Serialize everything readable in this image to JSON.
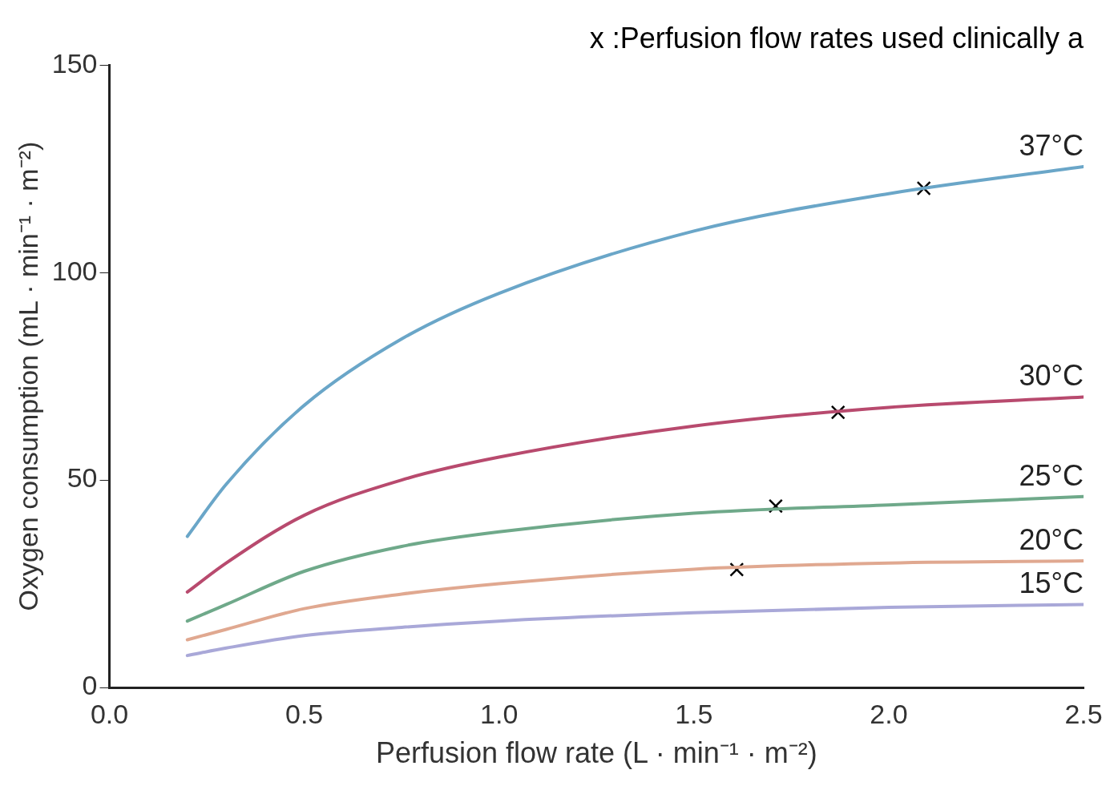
{
  "chart_data": {
    "type": "line",
    "title": "x :Perfusion flow rates used clinically a",
    "xlabel": "Perfusion flow rate (L · min⁻¹ · m⁻²)",
    "ylabel": "Oxygen consumption (mL · min⁻¹ · m⁻²)",
    "x": [
      0.2,
      0.3,
      0.5,
      0.75,
      1.0,
      1.5,
      2.0,
      2.5
    ],
    "series": [
      {
        "name": "37°C",
        "color": "#6aa6c8",
        "values": [
          36.4,
          49,
          68,
          84,
          95,
          110,
          119,
          125.5
        ]
      },
      {
        "name": "30°C",
        "color": "#b84a6e",
        "values": [
          23,
          30,
          41.5,
          50,
          55.5,
          63,
          67.5,
          70
        ]
      },
      {
        "name": "25°C",
        "color": "#6fa98a",
        "values": [
          16,
          20,
          28,
          34,
          37.5,
          42,
          44,
          46
        ]
      },
      {
        "name": "20°C",
        "color": "#e0a890",
        "values": [
          11.5,
          14,
          19,
          22.5,
          25,
          28.5,
          30,
          30.5
        ]
      },
      {
        "name": "15°C",
        "color": "#a9a8d8",
        "values": [
          7.7,
          9.5,
          12.5,
          14.5,
          16,
          18,
          19.3,
          20
        ]
      },
      {
        "type": "scatter",
        "color": "#000000",
        "marker": "cross",
        "x": [
          2.09,
          1.87,
          1.71,
          1.61
        ],
        "values": [
          120.3,
          66.3,
          43.7,
          28.4
        ]
      }
    ],
    "xlim": [
      0,
      2.5
    ],
    "xticks": [
      {
        "value": 0,
        "label": "0.0"
      },
      0.5,
      {
        "value": 1,
        "label": "1.0"
      },
      1.5,
      {
        "value": 2,
        "label": "2.0"
      },
      2.5
    ],
    "ylim": [
      0,
      150
    ],
    "yticks": [
      0,
      50,
      100,
      150
    ],
    "grid": false,
    "legend": false,
    "marker": "none",
    "line_style": "solid"
  }
}
